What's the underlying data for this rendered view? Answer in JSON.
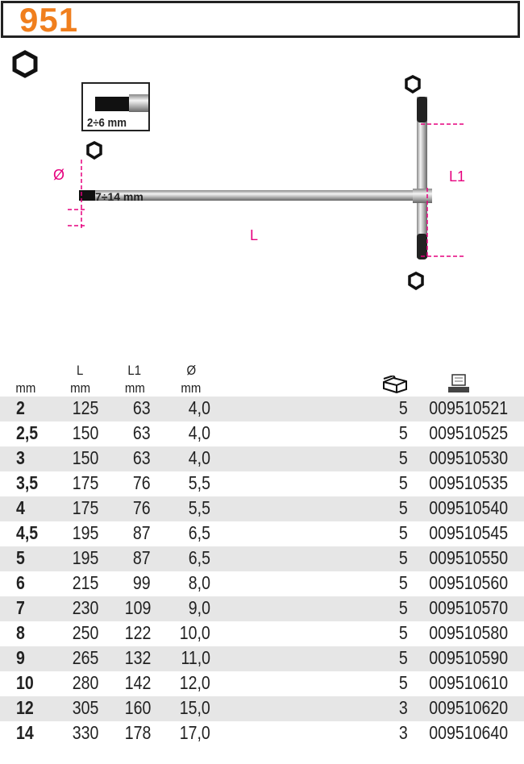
{
  "header": {
    "title": "951"
  },
  "drawing": {
    "inset_label": "2÷6 mm",
    "shaft_label": "7÷14 mm",
    "diameter_label": "Ø",
    "length_label": "L",
    "crossbar_label": "L1",
    "accent": "#e6007e",
    "icons": [
      "hexagon-icon"
    ]
  },
  "table": {
    "headers": [
      {
        "top": "",
        "unit": "mm"
      },
      {
        "top": "L",
        "unit": "mm"
      },
      {
        "top": "L1",
        "unit": "mm"
      },
      {
        "top": "Ø",
        "unit": "mm"
      }
    ],
    "pack_icon": "box-icon",
    "code_icon": "computer-icon",
    "rows": [
      {
        "mm": "2",
        "L": "125",
        "L1": "63",
        "d": "4,0",
        "qty": "5",
        "code": "009510521"
      },
      {
        "mm": "2,5",
        "L": "150",
        "L1": "63",
        "d": "4,0",
        "qty": "5",
        "code": "009510525"
      },
      {
        "mm": "3",
        "L": "150",
        "L1": "63",
        "d": "4,0",
        "qty": "5",
        "code": "009510530"
      },
      {
        "mm": "3,5",
        "L": "175",
        "L1": "76",
        "d": "5,5",
        "qty": "5",
        "code": "009510535"
      },
      {
        "mm": "4",
        "L": "175",
        "L1": "76",
        "d": "5,5",
        "qty": "5",
        "code": "009510540"
      },
      {
        "mm": "4,5",
        "L": "195",
        "L1": "87",
        "d": "6,5",
        "qty": "5",
        "code": "009510545"
      },
      {
        "mm": "5",
        "L": "195",
        "L1": "87",
        "d": "6,5",
        "qty": "5",
        "code": "009510550"
      },
      {
        "mm": "6",
        "L": "215",
        "L1": "99",
        "d": "8,0",
        "qty": "5",
        "code": "009510560"
      },
      {
        "mm": "7",
        "L": "230",
        "L1": "109",
        "d": "9,0",
        "qty": "5",
        "code": "009510570"
      },
      {
        "mm": "8",
        "L": "250",
        "L1": "122",
        "d": "10,0",
        "qty": "5",
        "code": "009510580"
      },
      {
        "mm": "9",
        "L": "265",
        "L1": "132",
        "d": "11,0",
        "qty": "5",
        "code": "009510590"
      },
      {
        "mm": "10",
        "L": "280",
        "L1": "142",
        "d": "12,0",
        "qty": "5",
        "code": "009510610"
      },
      {
        "mm": "12",
        "L": "305",
        "L1": "160",
        "d": "15,0",
        "qty": "3",
        "code": "009510620"
      },
      {
        "mm": "14",
        "L": "330",
        "L1": "178",
        "d": "17,0",
        "qty": "3",
        "code": "009510640"
      }
    ]
  }
}
